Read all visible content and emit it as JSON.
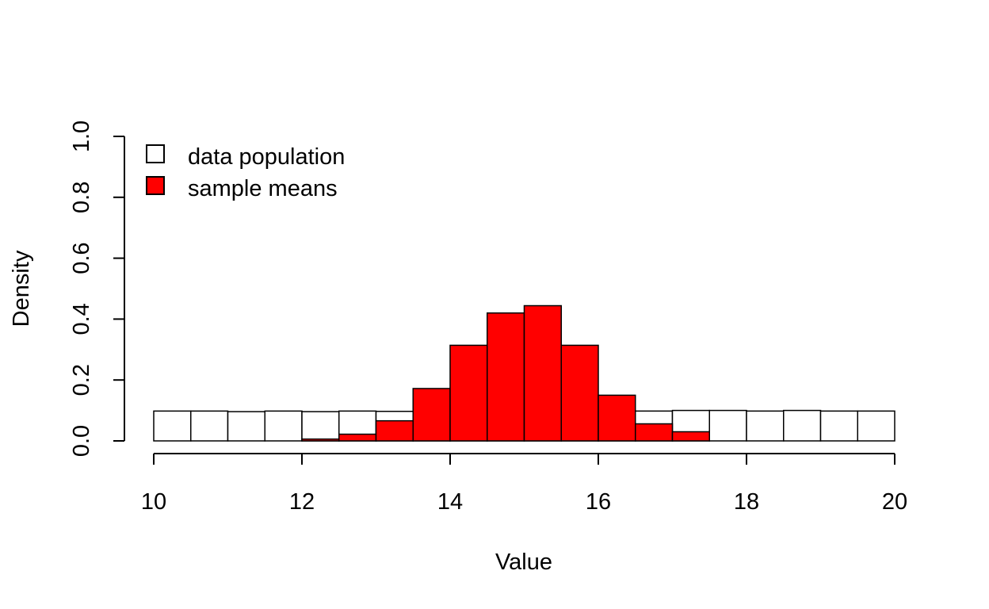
{
  "chart_data": {
    "type": "bar",
    "title": "",
    "xlabel": "Value",
    "ylabel": "Density",
    "xlim": [
      10,
      20
    ],
    "ylim": [
      0,
      1
    ],
    "xticks": [
      "10",
      "12",
      "14",
      "16",
      "18",
      "20"
    ],
    "yticks": [
      "0.0",
      "0.2",
      "0.4",
      "0.6",
      "0.8",
      "1.0"
    ],
    "legend_position": "top-left",
    "grid": false,
    "series": [
      {
        "name": "data population",
        "color": "#ffffff",
        "bins": [
          [
            10,
            10.5,
            0.098
          ],
          [
            10.5,
            11,
            0.098
          ],
          [
            11,
            11.5,
            0.096
          ],
          [
            11.5,
            12,
            0.098
          ],
          [
            12,
            12.5,
            0.096
          ],
          [
            12.5,
            13,
            0.098
          ],
          [
            13,
            13.5,
            0.097
          ],
          [
            13.5,
            14,
            0.1
          ],
          [
            14,
            14.5,
            0.1
          ],
          [
            14.5,
            15,
            0.1
          ],
          [
            15,
            15.5,
            0.1
          ],
          [
            15.5,
            16,
            0.1
          ],
          [
            16,
            16.5,
            0.1
          ],
          [
            16.5,
            17,
            0.098
          ],
          [
            17,
            17.5,
            0.1
          ],
          [
            17.5,
            18,
            0.1
          ],
          [
            18,
            18.5,
            0.098
          ],
          [
            18.5,
            19,
            0.1
          ],
          [
            19,
            19.5,
            0.098
          ],
          [
            19.5,
            20,
            0.098
          ]
        ]
      },
      {
        "name": "sample means",
        "color": "#ff0000",
        "bins": [
          [
            12,
            12.5,
            0.006
          ],
          [
            12.5,
            13,
            0.022
          ],
          [
            13,
            13.5,
            0.066
          ],
          [
            13.5,
            14,
            0.172
          ],
          [
            14,
            14.5,
            0.314
          ],
          [
            14.5,
            15,
            0.42
          ],
          [
            15,
            15.5,
            0.444
          ],
          [
            15.5,
            16,
            0.314
          ],
          [
            16,
            16.5,
            0.15
          ],
          [
            16.5,
            17,
            0.056
          ],
          [
            17,
            17.5,
            0.03
          ]
        ]
      }
    ]
  }
}
